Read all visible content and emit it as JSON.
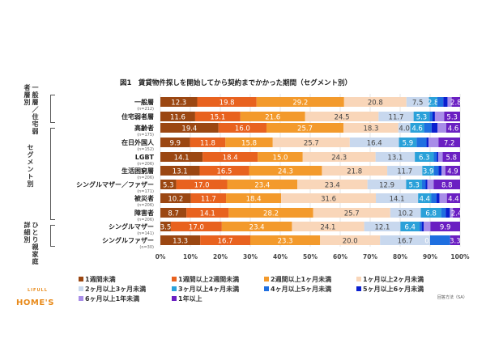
{
  "chart_data": {
    "type": "bar",
    "orientation": "horizontal",
    "stacked": true,
    "title": "図1　賃貸物件探しを開始してから契約までかかった期間（セグメント別）",
    "categories": [
      "一般層",
      "住宅弱者層",
      "高齢者",
      "在日外国人",
      "LGBT",
      "生活困窮層",
      "シングルマザー／ファザー",
      "被災者",
      "障害者",
      "シングルマザー",
      "シングルファザー"
    ],
    "sample_sizes": [
      "(n=212)",
      "",
      "(n=175)",
      "(n=152)",
      "(n=206)",
      "(n=206)",
      "(n=171)",
      "(n=206)",
      "(n=206)",
      "(n=141)",
      "(n=30)"
    ],
    "groups": [
      {
        "label": "一般層／住宅弱者層別",
        "categories": [
          "一般層",
          "住宅弱者層"
        ]
      },
      {
        "label": "セグメント別",
        "categories": [
          "高齢者",
          "在日外国人",
          "LGBT",
          "生活困窮層",
          "シングルマザー／ファザー",
          "被災者",
          "障害者"
        ]
      },
      {
        "label": "ひとり親家庭詳細別",
        "categories": [
          "シングルマザー",
          "シングルファザー"
        ]
      }
    ],
    "xlim": [
      0,
      100
    ],
    "xticks": [
      "0%",
      "10%",
      "20%",
      "30%",
      "40%",
      "50%",
      "60%",
      "70%",
      "80%",
      "90%",
      "100%"
    ],
    "grid": true,
    "legend_position": "bottom",
    "series": [
      {
        "name": "1週間未満",
        "color": "#9b4712",
        "labeled": true,
        "values": [
          12.3,
          11.6,
          19.4,
          9.9,
          14.1,
          13.1,
          5.3,
          10.2,
          8.7,
          3.5,
          13.3
        ]
      },
      {
        "name": "1週間以上2週間未満",
        "color": "#e8621f",
        "labeled": true,
        "values": [
          19.8,
          15.1,
          16.0,
          11.8,
          18.4,
          16.5,
          17.0,
          11.7,
          14.1,
          17.0,
          16.7
        ]
      },
      {
        "name": "2週間以上1ヶ月未満",
        "color": "#f39a2c",
        "labeled": true,
        "values": [
          29.2,
          21.6,
          25.7,
          15.8,
          15.0,
          24.3,
          23.4,
          18.4,
          28.2,
          23.4,
          23.3
        ]
      },
      {
        "name": "1ヶ月以上2ヶ月未満",
        "color": "#f9d6b9",
        "labeled": true,
        "values": [
          20.8,
          24.5,
          18.3,
          25.7,
          24.3,
          21.8,
          23.4,
          31.6,
          25.7,
          24.1,
          20.0
        ]
      },
      {
        "name": "2ヶ月以上3ヶ月未満",
        "color": "#c8d8ee",
        "labeled": true,
        "values": [
          7.5,
          11.7,
          4.0,
          16.4,
          13.1,
          11.7,
          12.9,
          14.1,
          10.2,
          12.1,
          16.7
        ]
      },
      {
        "name": "3ヶ月以上4ヶ月未満",
        "color": "#2ba1d9",
        "labeled": true,
        "values": [
          2.8,
          5.3,
          4.6,
          5.9,
          6.3,
          3.9,
          5.3,
          4.4,
          6.8,
          6.4,
          0.0
        ]
      },
      {
        "name": "4ヶ月以上5ヶ月未満",
        "color": "#1f6fe0",
        "labeled": false,
        "values": [
          2.0,
          1.0,
          2.5,
          3.3,
          1.0,
          1.5,
          1.2,
          1.7,
          1.5,
          0.7,
          6.7
        ]
      },
      {
        "name": "5ヶ月以上6ヶ月未満",
        "color": "#0a1fcf",
        "labeled": false,
        "values": [
          1.4,
          0.8,
          2.0,
          0.7,
          0.5,
          1.0,
          0.6,
          1.0,
          1.4,
          0.7,
          0.0
        ]
      },
      {
        "name": "6ヶ月以上1年未満",
        "color": "#a88de8",
        "labeled": false,
        "values": [
          1.4,
          3.1,
          2.9,
          3.3,
          1.5,
          1.3,
          2.1,
          2.5,
          1.0,
          2.2,
          0.0
        ]
      },
      {
        "name": "1年以上",
        "color": "#6a1fc2",
        "labeled": true,
        "values": [
          2.8,
          5.3,
          4.6,
          7.2,
          5.8,
          4.9,
          8.8,
          4.4,
          2.4,
          9.9,
          3.3
        ]
      }
    ]
  },
  "note": "回答方法（SA）",
  "logo": {
    "small": "LIFULL",
    "big": "HOME'S"
  }
}
